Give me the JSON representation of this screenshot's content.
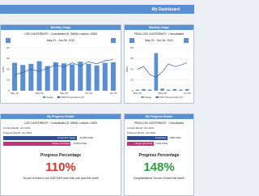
{
  "header": {
    "title": "My Dashboard"
  },
  "chart_panels": [
    {
      "title": "Monthly Usage",
      "site": "1230 CANTERBURY - Consolidated (E 15MW) Location: 43625",
      "date_range": "May 22 - Jun 06, 2021",
      "chart": {
        "categories": [
          "May 22",
          null,
          null,
          "May 26",
          null,
          null,
          "May 30",
          null,
          null,
          "Jun 03",
          null,
          null,
          "Jun 06"
        ],
        "usage": [
          52,
          48,
          50,
          55,
          46,
          53,
          51,
          49,
          54,
          50,
          47,
          52,
          53
        ],
        "temperature": [
          30,
          34,
          40,
          36,
          42,
          48,
          44,
          52,
          46,
          54,
          50,
          56,
          58
        ],
        "ylim": [
          0,
          80
        ],
        "yticks": [
          0,
          20,
          40,
          60,
          80
        ],
        "y_label": "KWH",
        "legend": [
          "Usage",
          "KWH Temperature (F)"
        ],
        "bar_color": "#5b8fd4",
        "line_color": "#2a5fa8"
      }
    },
    {
      "title": "Monthly Usage",
      "site": "PENN-1230 CANTERBURY - Consolidated",
      "date_range": "May 20 - Jun 06, 2021",
      "chart": {
        "categories": [
          "May 20",
          null,
          null,
          null,
          "May 28",
          null,
          null,
          null,
          "Jun 06"
        ],
        "usage": [
          2,
          3,
          2,
          70,
          4,
          2,
          3,
          2,
          3
        ],
        "temperature": [
          40,
          45,
          30,
          25,
          35,
          50,
          45,
          48,
          52
        ],
        "ylim": [
          0,
          80
        ],
        "yticks": [
          0,
          20,
          40,
          60,
          80
        ],
        "y_label": "KWH",
        "legend": [
          "Usage",
          "KWH Temperature (F)"
        ],
        "bar_color": "#5b8fd4",
        "line_color": "#2a5fa8"
      }
    }
  ],
  "progress_panels": [
    {
      "title": "My Progress Details",
      "site": "1230 CANTERBURY - Consolidated (E 15MW) Location: 43625",
      "current_month": "Current Month: Jun 2021",
      "progress_month": "Progress Month: Jun 2021",
      "bars": [
        {
          "label": "Projected Usage",
          "value_text": "11,880 KWH",
          "fraction": 0.92,
          "color": "#2f4f8f"
        },
        {
          "label": "Usage and Goal",
          "value_text": "10,800 KWH",
          "fraction": 0.84,
          "color": "#c8307a"
        }
      ],
      "heading": "Progress Percentage",
      "percent": "110%",
      "percent_color": "#e0302a",
      "message": "You are on track to use 1080 KWH more than your goal this month"
    },
    {
      "title": "My Progress Details",
      "site": "PENN-1230 CANTERBURY - Consolidated",
      "current_month": "Current Month: Jun 2021",
      "progress_month": "Progress Month: Jun 2021",
      "bars": [
        {
          "label": "Projected",
          "value_text": "1,480 KWH",
          "fraction": 0.9,
          "color": "#2f4f8f"
        },
        {
          "label": "Usage and Goal",
          "value_text": "1,000 KWH",
          "fraction": 0.6,
          "color": "#c8307a"
        }
      ],
      "heading": "Progress Percentage",
      "percent": "148%",
      "percent_color": "#2aa03a",
      "message": "Congratulations! You are on track this month"
    }
  ]
}
